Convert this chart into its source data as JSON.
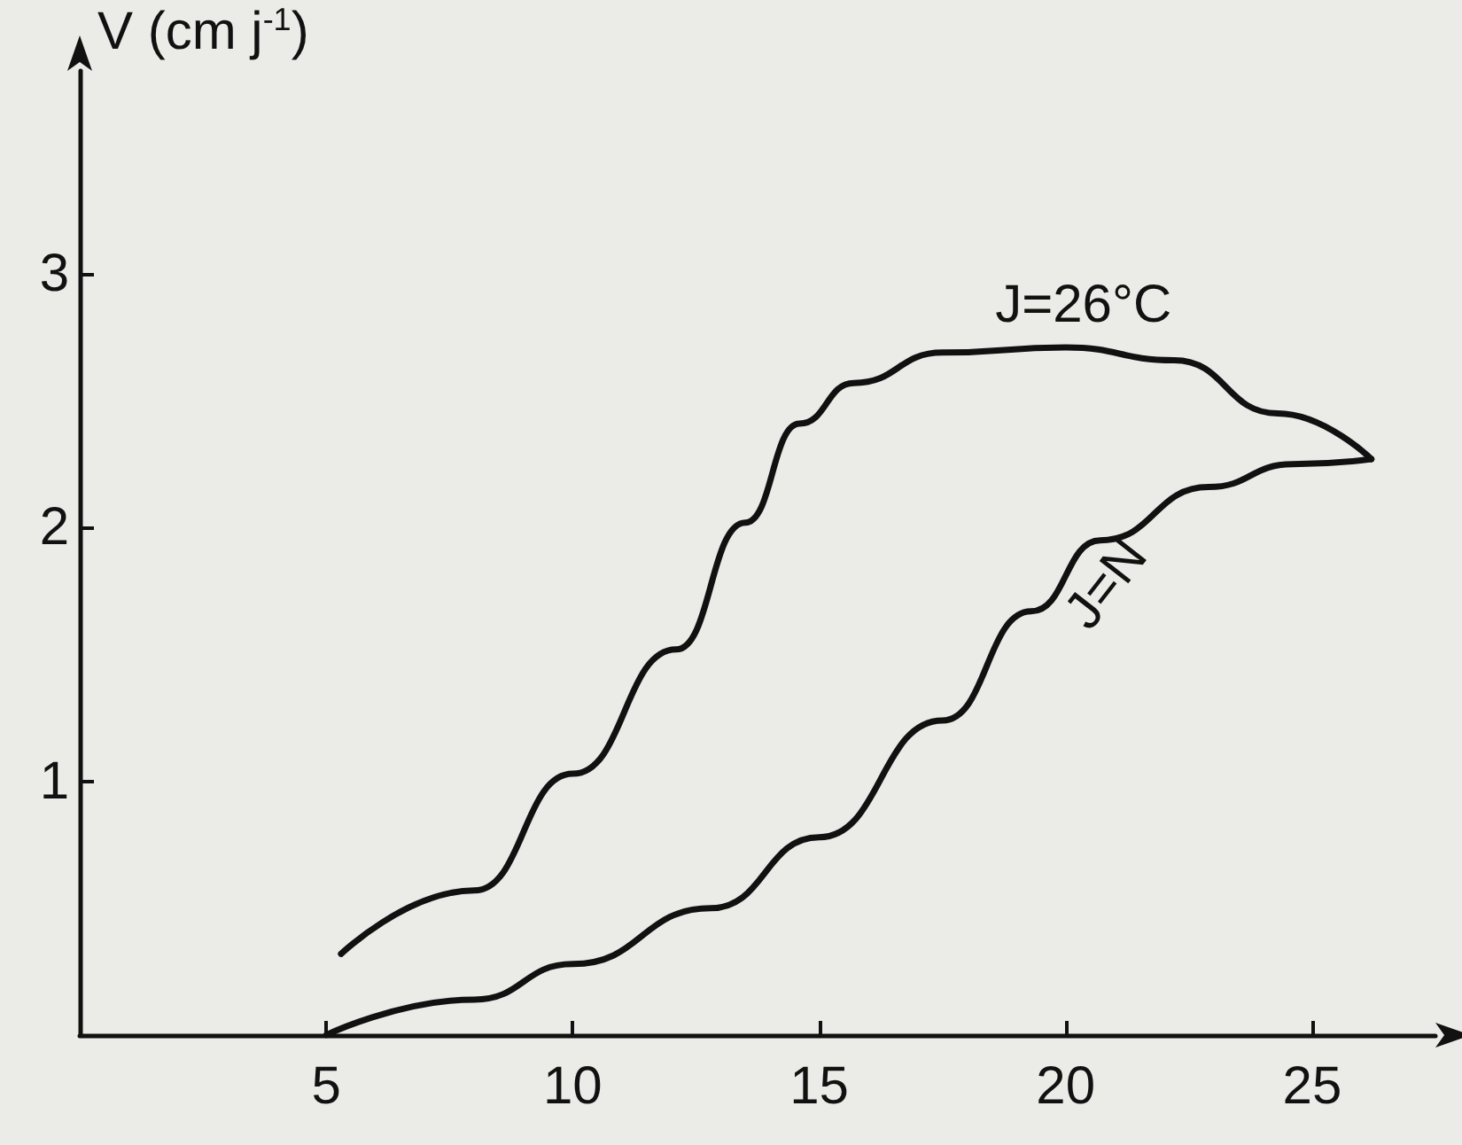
{
  "chart_data": {
    "type": "line",
    "ylabel": "V (cm j$^{-1}$)",
    "xlim": [
      0,
      27.5
    ],
    "xticks": [
      5,
      10,
      15,
      20,
      25
    ],
    "ylim": [
      0,
      3.8
    ],
    "yticks": [
      1,
      2,
      3
    ],
    "grid": false,
    "legend": false,
    "marker": "none",
    "line_style": "solid",
    "series": [
      {
        "name": "J=26°C",
        "color": "#111111",
        "x": [
          5.3,
          8.0,
          10.0,
          12.1,
          13.5,
          14.6,
          15.7,
          17.5,
          20.0,
          22.2,
          24.3,
          26.2
        ],
        "values": [
          0.32,
          0.57,
          1.03,
          1.52,
          2.02,
          2.41,
          2.57,
          2.69,
          2.71,
          2.66,
          2.45,
          2.27
        ]
      },
      {
        "name": "J=N",
        "color": "#111111",
        "x": [
          5.0,
          8.0,
          10.0,
          12.8,
          15.0,
          17.5,
          19.3,
          20.7,
          22.9,
          24.6,
          26.2
        ],
        "values": [
          0.0,
          0.14,
          0.28,
          0.5,
          0.78,
          1.24,
          1.67,
          1.95,
          2.16,
          2.25,
          2.27
        ]
      }
    ]
  }
}
